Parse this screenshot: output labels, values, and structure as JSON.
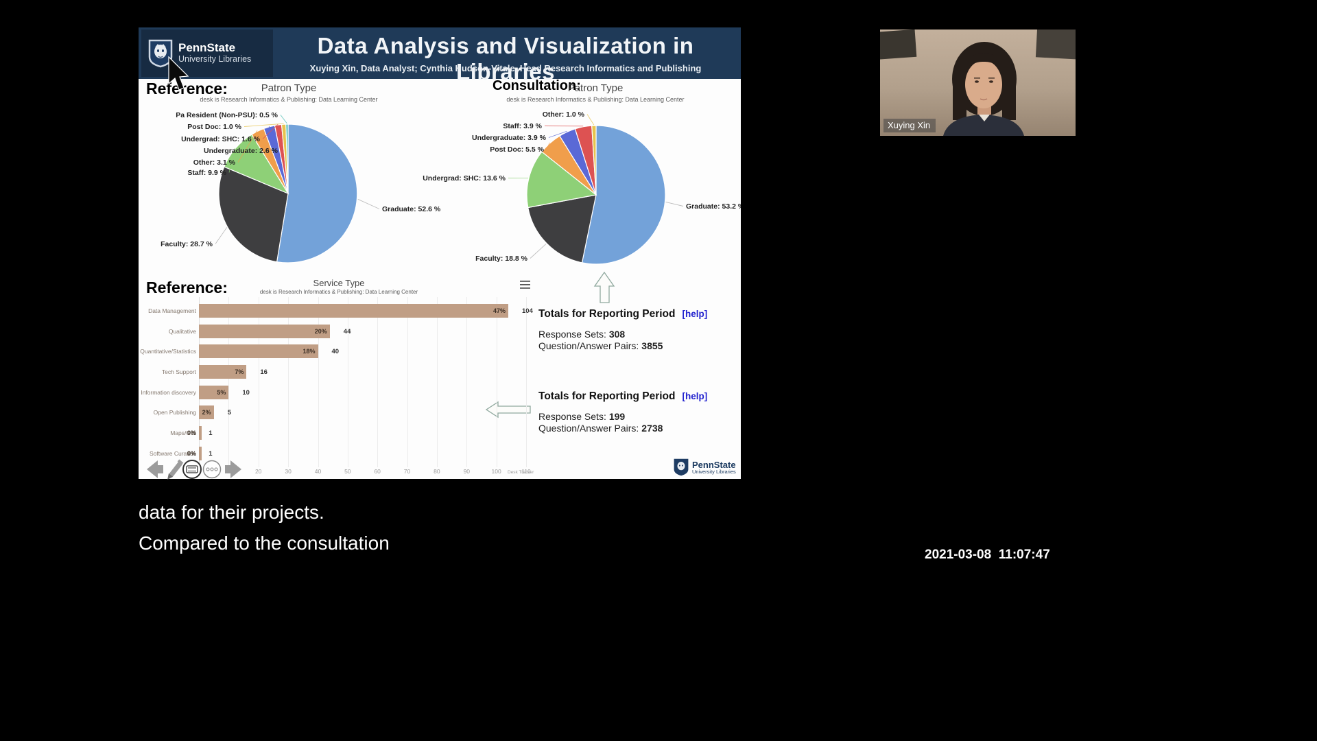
{
  "header": {
    "brand_name": "PennState",
    "brand_sub": "University Libraries",
    "title": "Data Analysis and Visualization in Libraries",
    "subtitle": "Xuying Xin, Data Analyst; Cynthia Hudson-Vitale, Head Research Informatics and Publishing"
  },
  "chart_data": [
    {
      "type": "pie",
      "section_label": "Reference:",
      "title": "Patron Type",
      "subtitle": "desk is Research Informatics & Publishing: Data Learning Center",
      "slices": [
        {
          "label": "Graduate",
          "value": 52.6,
          "text": "Graduate: 52.6 %",
          "color": "#73a2d9"
        },
        {
          "label": "Faculty",
          "value": 28.7,
          "text": "Faculty: 28.7 %",
          "color": "#3e3e40"
        },
        {
          "label": "Staff",
          "value": 9.9,
          "text": "Staff: 9.9 %",
          "color": "#8ed077"
        },
        {
          "label": "Other",
          "value": 3.1,
          "text": "Other: 3.1 %",
          "color": "#f09e4b"
        },
        {
          "label": "Undergraduate",
          "value": 2.6,
          "text": "Undergraduate: 2.6 %",
          "color": "#5a69d6"
        },
        {
          "label": "Undergrad: SHC",
          "value": 1.6,
          "text": "Undergrad: SHC: 1.6 %",
          "color": "#dd5252"
        },
        {
          "label": "Post Doc",
          "value": 1.0,
          "text": "Post Doc: 1.0 %",
          "color": "#e7c34d"
        },
        {
          "label": "Pa Resident (Non-PSU)",
          "value": 0.5,
          "text": "Pa Resident (Non-PSU): 0.5 %",
          "color": "#3fb8ac"
        }
      ]
    },
    {
      "type": "pie",
      "section_label": "Consultation:",
      "title": "Patron Type",
      "subtitle": "desk is Research Informatics & Publishing: Data Learning Center",
      "slices": [
        {
          "label": "Graduate",
          "value": 53.2,
          "text": "Graduate: 53.2 %",
          "color": "#73a2d9"
        },
        {
          "label": "Faculty",
          "value": 18.8,
          "text": "Faculty: 18.8 %",
          "color": "#3e3e40"
        },
        {
          "label": "Undergrad: SHC",
          "value": 13.6,
          "text": "Undergrad: SHC: 13.6 %",
          "color": "#8ed077"
        },
        {
          "label": "Post Doc",
          "value": 5.5,
          "text": "Post Doc: 5.5 %",
          "color": "#f09e4b"
        },
        {
          "label": "Undergraduate",
          "value": 3.9,
          "text": "Undergraduate: 3.9 %",
          "color": "#5a69d6"
        },
        {
          "label": "Staff",
          "value": 3.9,
          "text": "Staff: 3.9 %",
          "color": "#dd5252"
        },
        {
          "label": "Other",
          "value": 1.0,
          "text": "Other: 1.0 %",
          "color": "#e7c34d"
        }
      ]
    },
    {
      "type": "bar",
      "section_label": "Reference:",
      "title": "Service Type",
      "subtitle": "desk is Research Informatics & Publishing: Data Learning Center",
      "source": "Desk Tracker",
      "categories": [
        "Data Management",
        "Qualitative",
        "Quantitative/Statistics",
        "Tech Support",
        "Information discovery",
        "Open Publishing",
        "Maps/GIS",
        "Software Curation"
      ],
      "counts": [
        104,
        44,
        40,
        16,
        10,
        5,
        1,
        1
      ],
      "pct_labels": [
        "47%",
        "20%",
        "18%",
        "7%",
        "5%",
        "2%",
        "0%",
        "0%"
      ],
      "xlim": [
        0,
        110
      ],
      "xticks": [
        10,
        20,
        30,
        40,
        50,
        60,
        70,
        80,
        90,
        100,
        110
      ],
      "bar_color": "#c09e85"
    }
  ],
  "totals": [
    {
      "heading": "Totals for Reporting Period",
      "help": "[help]",
      "response_sets_label": "Response Sets:",
      "response_sets": "308",
      "qa_label": "Question/Answer Pairs:",
      "qa": "3855"
    },
    {
      "heading": "Totals for Reporting Period",
      "help": "[help]",
      "response_sets_label": "Response Sets:",
      "response_sets": "199",
      "qa_label": "Question/Answer Pairs:",
      "qa": "2738"
    }
  ],
  "slide_footer_logo": {
    "brand": "PennState",
    "sub": "University Libraries"
  },
  "toolbar_icons": [
    "back-arrow-icon",
    "pencil-icon",
    "keyboard-icon",
    "more-dots-icon",
    "forward-arrow-icon"
  ],
  "webcam": {
    "name": "Xuying Xin"
  },
  "captions": {
    "line1": "data for their projects.",
    "line2": "Compared to the consultation"
  },
  "timestamp": "2021-03-08  11:07:47"
}
